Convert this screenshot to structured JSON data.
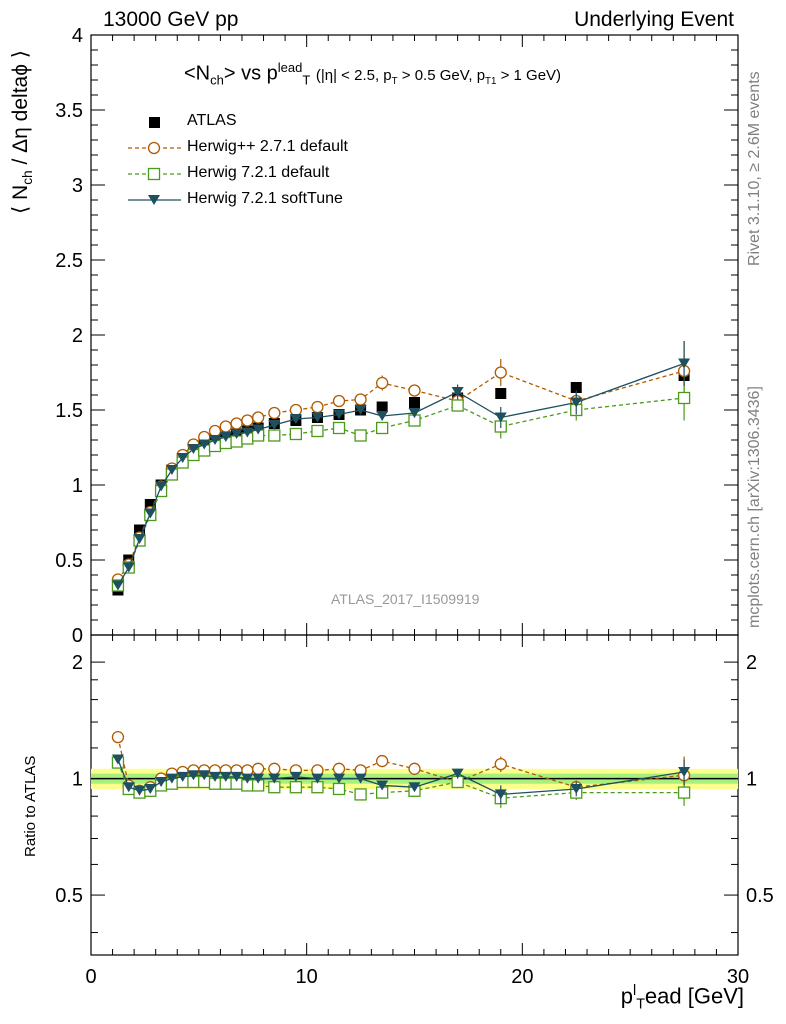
{
  "header": {
    "left": "13000 GeV pp",
    "right": "Underlying Event"
  },
  "side_text": {
    "rivet": "Rivet 3.1.10, ≥ 2.6M events",
    "mcplots": "mcplots.cern.ch [arXiv:1306.3436]"
  },
  "analysis_id": "ATLAS_2017_I1509919",
  "colors": {
    "atlas": "#000000",
    "herwigpp": "#b05a00",
    "herwig_default": "#4c9a1c",
    "herwig_softtune": "#1f5060",
    "band_yellow": "#fbff8c",
    "band_green": "#a8f07c"
  },
  "chart_data": [
    {
      "type": "scatter",
      "title": "<Nch> vs pT^lead (|η| < 2.5, pT > 0.5 GeV, pT1 > 1 GeV)",
      "ylabel": "⟨ Nch / Δη deltaφ ⟩",
      "xlabel": "pT^lead [GeV]",
      "xlim": [
        0,
        30
      ],
      "ylim": [
        0,
        4
      ],
      "y_ticks": [
        "0",
        "0.5",
        "1",
        "1.5",
        "2",
        "2.5",
        "3",
        "3.5",
        "4"
      ],
      "x_ticks": [
        "0",
        "10",
        "20",
        "30"
      ],
      "legend_position": "top-left",
      "x": [
        1.25,
        1.75,
        2.25,
        2.75,
        3.25,
        3.75,
        4.25,
        4.75,
        5.25,
        5.75,
        6.25,
        6.75,
        7.25,
        7.75,
        8.5,
        9.5,
        10.5,
        11.5,
        12.5,
        13.5,
        15,
        17,
        19,
        22.5,
        27.5
      ],
      "series": [
        {
          "name": "ATLAS",
          "marker": "filled-square",
          "values": [
            0.3,
            0.5,
            0.7,
            0.87,
            1.0,
            1.1,
            1.18,
            1.22,
            1.26,
            1.3,
            1.32,
            1.34,
            1.36,
            1.38,
            1.41,
            1.43,
            1.45,
            1.47,
            1.5,
            1.52,
            1.55,
            1.58,
            1.61,
            1.65,
            1.73
          ]
        },
        {
          "name": "Herwig++ 2.7.1 default",
          "marker": "open-circle",
          "line": "dashed",
          "values": [
            0.37,
            0.47,
            0.65,
            0.82,
            0.99,
            1.11,
            1.2,
            1.27,
            1.32,
            1.36,
            1.39,
            1.41,
            1.43,
            1.45,
            1.48,
            1.5,
            1.52,
            1.56,
            1.57,
            1.68,
            1.63,
            1.56,
            1.75,
            1.56,
            1.76
          ],
          "errors": [
            0,
            0,
            0,
            0,
            0,
            0,
            0,
            0,
            0,
            0,
            0,
            0,
            0,
            0,
            0,
            0,
            0,
            0,
            0,
            0.05,
            0.04,
            0.05,
            0.09,
            0.05,
            0.2
          ]
        },
        {
          "name": "Herwig 7.2.1 default",
          "marker": "open-square",
          "line": "dashed",
          "values": [
            0.33,
            0.45,
            0.63,
            0.8,
            0.96,
            1.07,
            1.15,
            1.2,
            1.23,
            1.26,
            1.28,
            1.29,
            1.31,
            1.33,
            1.33,
            1.34,
            1.36,
            1.38,
            1.33,
            1.38,
            1.43,
            1.53,
            1.39,
            1.5,
            1.58
          ],
          "errors": [
            0,
            0,
            0,
            0,
            0,
            0,
            0,
            0,
            0,
            0,
            0,
            0,
            0,
            0,
            0,
            0,
            0,
            0,
            0.02,
            0.03,
            0.03,
            0.04,
            0.08,
            0.07,
            0.15
          ]
        },
        {
          "name": "Herwig 7.2.1 softTune",
          "marker": "filled-triangle-down",
          "line": "solid",
          "values": [
            0.33,
            0.45,
            0.64,
            0.81,
            0.99,
            1.1,
            1.18,
            1.24,
            1.27,
            1.3,
            1.32,
            1.34,
            1.35,
            1.37,
            1.4,
            1.44,
            1.45,
            1.47,
            1.5,
            1.46,
            1.48,
            1.62,
            1.45,
            1.55,
            1.81
          ],
          "errors": [
            0,
            0,
            0,
            0,
            0,
            0,
            0,
            0,
            0,
            0,
            0,
            0,
            0,
            0,
            0,
            0,
            0,
            0,
            0.02,
            0.03,
            0.03,
            0.05,
            0.07,
            0.08,
            0.15
          ]
        }
      ]
    },
    {
      "type": "scatter",
      "ylabel": "Ratio to ATLAS",
      "xlabel": "pT^lead [GeV]",
      "xlim": [
        0,
        30
      ],
      "ylim": [
        0.35,
        2.35
      ],
      "y_scale": "log",
      "y_ticks": [
        "0.5",
        "1",
        "2"
      ],
      "band": [
        0.97,
        1.03
      ],
      "x": [
        1.25,
        1.75,
        2.25,
        2.75,
        3.25,
        3.75,
        4.25,
        4.75,
        5.25,
        5.75,
        6.25,
        6.75,
        7.25,
        7.75,
        8.5,
        9.5,
        10.5,
        11.5,
        12.5,
        13.5,
        15,
        17,
        19,
        22.5,
        27.5
      ],
      "series": [
        {
          "name": "Herwig++ 2.7.1 default",
          "marker": "open-circle",
          "line": "dashed",
          "values": [
            1.28,
            0.96,
            0.93,
            0.95,
            1.0,
            1.03,
            1.04,
            1.05,
            1.05,
            1.05,
            1.05,
            1.05,
            1.05,
            1.06,
            1.06,
            1.05,
            1.05,
            1.06,
            1.05,
            1.11,
            1.06,
            0.98,
            1.09,
            0.95,
            1.02
          ],
          "errors": [
            0,
            0,
            0,
            0,
            0,
            0,
            0,
            0,
            0,
            0,
            0,
            0,
            0,
            0,
            0,
            0,
            0,
            0,
            0,
            0.03,
            0.03,
            0.03,
            0.05,
            0.04,
            0.12
          ]
        },
        {
          "name": "Herwig 7.2.1 default",
          "marker": "open-square",
          "line": "dashed",
          "values": [
            1.1,
            0.94,
            0.92,
            0.93,
            0.96,
            0.97,
            0.98,
            0.98,
            0.98,
            0.97,
            0.97,
            0.97,
            0.96,
            0.96,
            0.95,
            0.95,
            0.95,
            0.94,
            0.91,
            0.92,
            0.93,
            0.98,
            0.89,
            0.92,
            0.92
          ],
          "errors": [
            0,
            0,
            0,
            0,
            0,
            0,
            0,
            0,
            0,
            0,
            0,
            0,
            0,
            0,
            0,
            0,
            0,
            0,
            0.02,
            0.02,
            0.02,
            0.03,
            0.05,
            0.04,
            0.07
          ]
        },
        {
          "name": "Herwig 7.2.1 softTune",
          "marker": "filled-triangle-down",
          "line": "solid",
          "values": [
            1.12,
            0.95,
            0.93,
            0.94,
            0.98,
            1.0,
            1.01,
            1.02,
            1.02,
            1.01,
            1.01,
            1.01,
            1.0,
            1.0,
            1.0,
            1.01,
            1.0,
            1.0,
            1.0,
            0.96,
            0.95,
            1.03,
            0.91,
            0.94,
            1.04
          ],
          "errors": [
            0,
            0,
            0,
            0,
            0,
            0,
            0,
            0,
            0,
            0,
            0,
            0,
            0,
            0,
            0,
            0,
            0,
            0,
            0.02,
            0.02,
            0.02,
            0.03,
            0.05,
            0.04,
            0.08
          ]
        }
      ]
    }
  ]
}
